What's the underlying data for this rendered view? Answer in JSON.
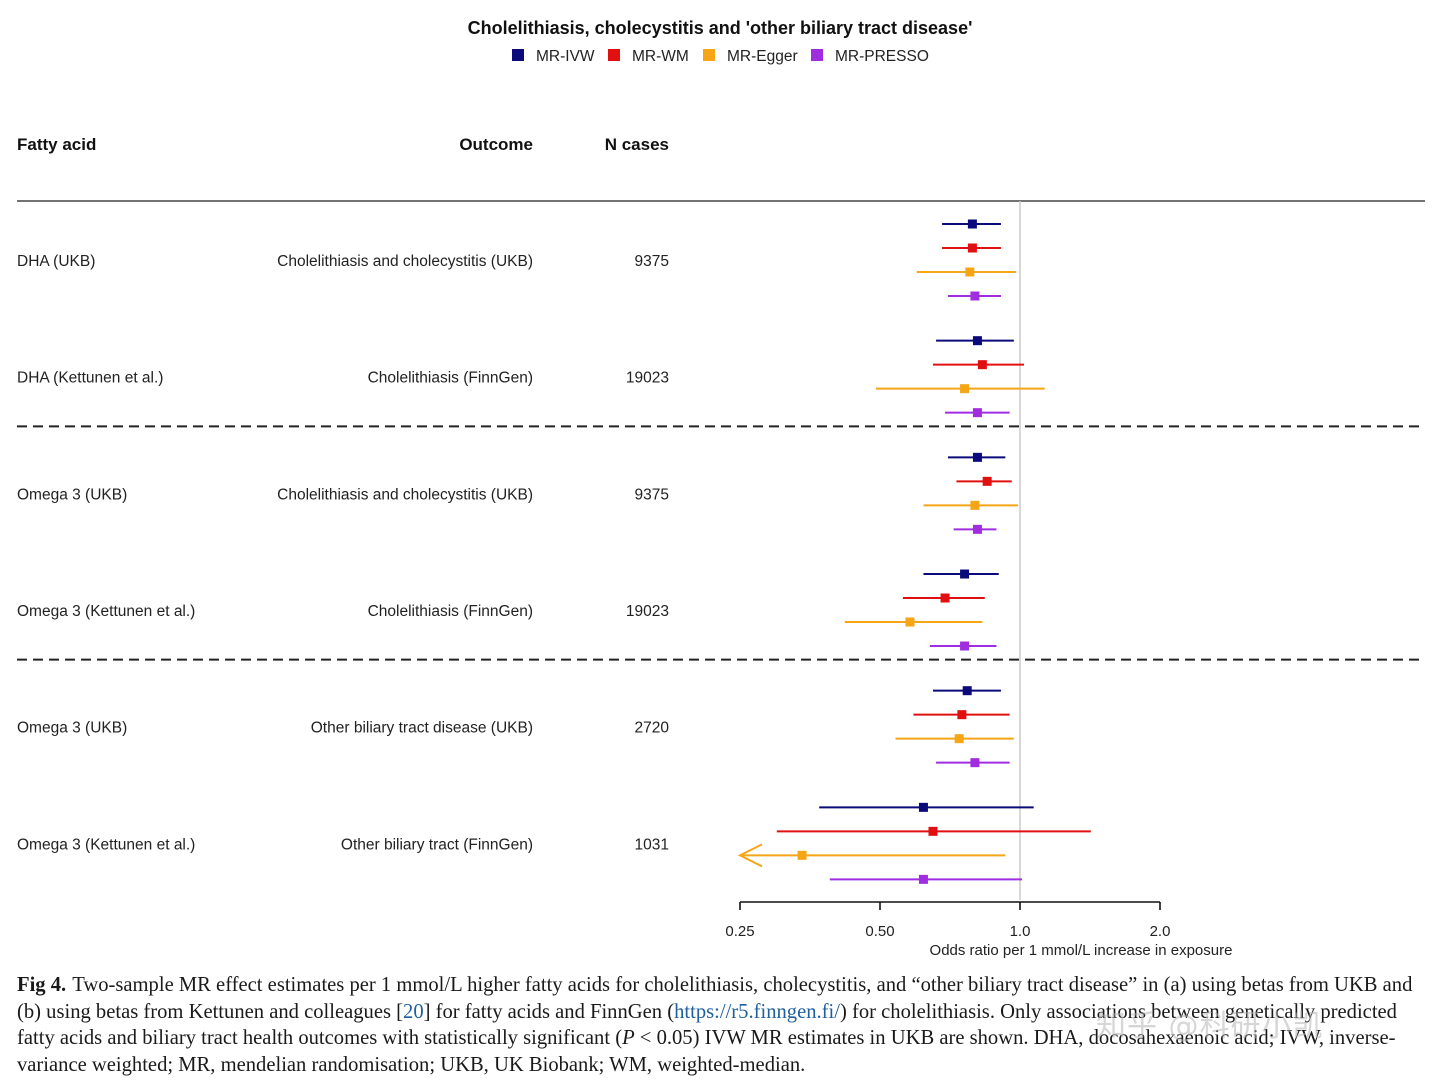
{
  "chart_data": {
    "type": "forest",
    "title": "Cholelithiasis, cholecystitis and 'other biliary tract disease'",
    "legend": [
      {
        "label": "MR-IVW",
        "color": "#0a0a7a"
      },
      {
        "label": "MR-WM",
        "color": "#e01010"
      },
      {
        "label": "MR-Egger",
        "color": "#f5a516"
      },
      {
        "label": "MR-PRESSO",
        "color": "#a12de0"
      }
    ],
    "columns": {
      "fatty_acid": "Fatty acid",
      "outcome": "Outcome",
      "n_cases": "N cases"
    },
    "xlabel": "Odds ratio per 1 mmol/L increase in exposure",
    "x_scale": "log2",
    "xlim": [
      0.25,
      2.0
    ],
    "ticks": [
      {
        "value": 0.25,
        "label": "0.25"
      },
      {
        "value": 0.5,
        "label": "0.50"
      },
      {
        "value": 1.0,
        "label": "1.0"
      },
      {
        "value": 2.0,
        "label": "2.0"
      }
    ],
    "reference_line": 1.0,
    "groups": [
      {
        "rows": [
          {
            "fatty_acid": "DHA (UKB)",
            "outcome": "Cholelithiasis and cholecystitis (UKB)",
            "n_cases": "9375",
            "estimates": [
              {
                "method": "MR-IVW",
                "or": 0.79,
                "lo": 0.68,
                "hi": 0.91
              },
              {
                "method": "MR-WM",
                "or": 0.79,
                "lo": 0.68,
                "hi": 0.91
              },
              {
                "method": "MR-Egger",
                "or": 0.78,
                "lo": 0.6,
                "hi": 0.98
              },
              {
                "method": "MR-PRESSO",
                "or": 0.8,
                "lo": 0.7,
                "hi": 0.91
              }
            ]
          },
          {
            "fatty_acid": "DHA (Kettunen et al.)",
            "outcome": "Cholelithiasis (FinnGen)",
            "n_cases": "19023",
            "estimates": [
              {
                "method": "MR-IVW",
                "or": 0.81,
                "lo": 0.66,
                "hi": 0.97
              },
              {
                "method": "MR-WM",
                "or": 0.83,
                "lo": 0.65,
                "hi": 1.02
              },
              {
                "method": "MR-Egger",
                "or": 0.76,
                "lo": 0.49,
                "hi": 1.13
              },
              {
                "method": "MR-PRESSO",
                "or": 0.81,
                "lo": 0.69,
                "hi": 0.95
              }
            ]
          }
        ]
      },
      {
        "rows": [
          {
            "fatty_acid": "Omega 3 (UKB)",
            "outcome": "Cholelithiasis and cholecystitis (UKB)",
            "n_cases": "9375",
            "estimates": [
              {
                "method": "MR-IVW",
                "or": 0.81,
                "lo": 0.7,
                "hi": 0.93
              },
              {
                "method": "MR-WM",
                "or": 0.85,
                "lo": 0.73,
                "hi": 0.96
              },
              {
                "method": "MR-Egger",
                "or": 0.8,
                "lo": 0.62,
                "hi": 0.99
              },
              {
                "method": "MR-PRESSO",
                "or": 0.81,
                "lo": 0.72,
                "hi": 0.89
              }
            ]
          },
          {
            "fatty_acid": "Omega 3 (Kettunen et al.)",
            "outcome": "Cholelithiasis (FinnGen)",
            "n_cases": "19023",
            "estimates": [
              {
                "method": "MR-IVW",
                "or": 0.76,
                "lo": 0.62,
                "hi": 0.9
              },
              {
                "method": "MR-WM",
                "or": 0.69,
                "lo": 0.56,
                "hi": 0.84
              },
              {
                "method": "MR-Egger",
                "or": 0.58,
                "lo": 0.42,
                "hi": 0.83
              },
              {
                "method": "MR-PRESSO",
                "or": 0.76,
                "lo": 0.64,
                "hi": 0.89
              }
            ]
          }
        ]
      },
      {
        "rows": [
          {
            "fatty_acid": "Omega 3 (UKB)",
            "outcome": "Other biliary tract disease (UKB)",
            "n_cases": "2720",
            "estimates": [
              {
                "method": "MR-IVW",
                "or": 0.77,
                "lo": 0.65,
                "hi": 0.91
              },
              {
                "method": "MR-WM",
                "or": 0.75,
                "lo": 0.59,
                "hi": 0.95
              },
              {
                "method": "MR-Egger",
                "or": 0.74,
                "lo": 0.54,
                "hi": 0.97
              },
              {
                "method": "MR-PRESSO",
                "or": 0.8,
                "lo": 0.66,
                "hi": 0.95
              }
            ]
          },
          {
            "fatty_acid": "Omega 3 (Kettunen et al.)",
            "outcome": "Other biliary tract (FinnGen)",
            "n_cases": "1031",
            "estimates": [
              {
                "method": "MR-IVW",
                "or": 0.62,
                "lo": 0.37,
                "hi": 1.07
              },
              {
                "method": "MR-WM",
                "or": 0.65,
                "lo": 0.3,
                "hi": 1.42
              },
              {
                "method": "MR-Egger",
                "or": 0.34,
                "lo": 0.25,
                "hi": 0.93,
                "lo_truncated": true
              },
              {
                "method": "MR-PRESSO",
                "or": 0.62,
                "lo": 0.39,
                "hi": 1.01
              }
            ]
          }
        ]
      }
    ]
  },
  "caption": {
    "label": "Fig 4.",
    "part1": "Two-sample MR effect estimates per 1 mmol/L higher fatty acids for cholelithiasis, cholecystitis, and “other biliary tract disease” in (a) using betas from UKB and (b) using betas from Kettunen and colleagues [",
    "ref": "20",
    "part2": "] for fatty acids and FinnGen (",
    "link": "https://r5.finngen.fi/",
    "part3": ") for cholelithiasis. Only associations between genetically predicted fatty acids and biliary tract health outcomes with statistically significant (",
    "p_symbol": "P",
    "part4": " < 0.05) IVW MR estimates in UKB are shown. DHA, docosahexaenoic acid; IVW, inverse-variance weighted; MR, mendelian randomisation; UKB, UK Biobank; WM, weighted-median."
  },
  "watermark": "知乎 @科研小凯"
}
